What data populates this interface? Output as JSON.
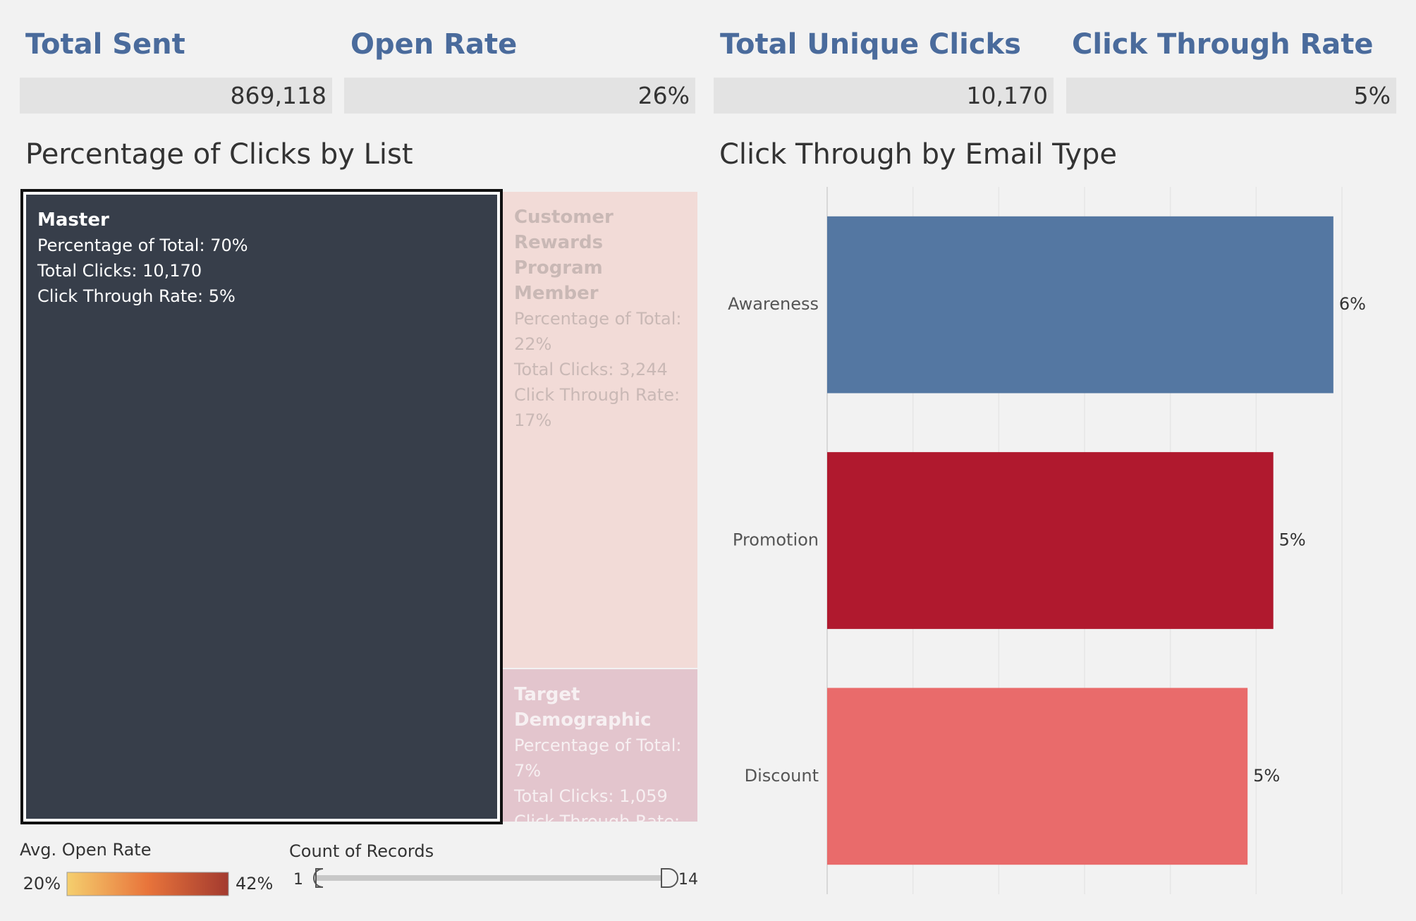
{
  "kpis": [
    {
      "title": "Total Sent",
      "value": "869,118"
    },
    {
      "title": "Open Rate",
      "value": "26%"
    },
    {
      "title": "Total Unique Clicks",
      "value": "10,170"
    },
    {
      "title": "Click Through Rate",
      "value": "5%"
    }
  ],
  "chart_data": [
    {
      "type": "treemap",
      "title": "Percentage of Clicks by List",
      "labels": [
        "Percentage of Total:",
        "Total Clicks:",
        "Click Through Rate:"
      ],
      "items": [
        {
          "name": "Master",
          "color": "#373e4a",
          "text_color": "#ffffff",
          "values": [
            70,
            10170,
            5
          ],
          "value_labels": [
            "70%",
            "10,170",
            "5%"
          ]
        },
        {
          "name": "Customer Rewards Program Member",
          "color": "#f2dbd7",
          "text_color": "#c9b8b5",
          "values": [
            22,
            3244,
            17
          ],
          "value_labels": [
            "22%",
            "3,244",
            "17%"
          ]
        },
        {
          "name": "Target Demographic",
          "color": "#e3c5cd",
          "text_color": "#f7f0f2",
          "values": [
            7,
            1059,
            null
          ],
          "value_labels": [
            "7%",
            "1,059",
            null
          ]
        }
      ],
      "selected": 0
    },
    {
      "type": "bar",
      "orientation": "horizontal",
      "title": "Click Through by Email Type",
      "categories": [
        "Awareness",
        "Promotion",
        "Discount"
      ],
      "values": [
        5.9,
        5.2,
        4.9
      ],
      "value_labels": [
        "6%",
        "5%",
        "5%"
      ],
      "colors": [
        "#5477a2",
        "#b0192e",
        "#e96b6b"
      ],
      "xlim": [
        0,
        6.6
      ],
      "xticks": [
        0,
        1,
        2,
        3,
        4,
        5,
        6
      ],
      "grid": true
    }
  ],
  "color_legend": {
    "title": "Avg. Open Rate",
    "min_label": "20%",
    "max_label": "42%",
    "colors": [
      "#f5cf6e",
      "#e8743b",
      "#a33a2f"
    ]
  },
  "filter": {
    "title": "Count of Records",
    "min": 1,
    "max": 14
  }
}
